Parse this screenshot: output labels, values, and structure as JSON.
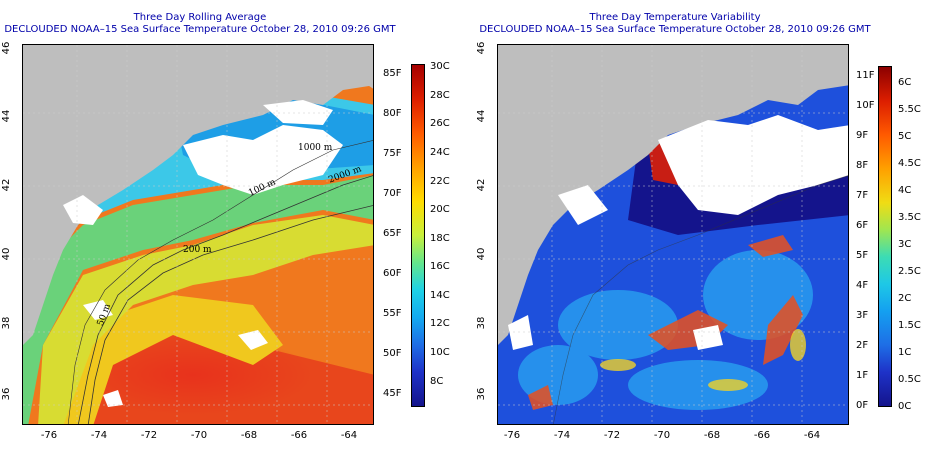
{
  "left_panel": {
    "title_line1": "Three Day Rolling Average",
    "title_line2": "DECLOUDED NOAA–15 Sea Surface Temperature October 28, 2010 09:26 GMT",
    "contour_labels": [
      "1000 m",
      "200 m",
      "50 m",
      "2000 m",
      "100 m"
    ],
    "colorbar": {
      "range_c": [
        6,
        30
      ],
      "range_f": [
        42,
        86
      ],
      "celsius_ticks": [
        "30C",
        "28C",
        "26C",
        "24C",
        "22C",
        "20C",
        "18C",
        "16C",
        "14C",
        "12C",
        "10C",
        "8C"
      ],
      "fahrenheit_ticks": [
        "85F",
        "80F",
        "75F",
        "70F",
        "65F",
        "60F",
        "55F",
        "50F",
        "45F"
      ]
    }
  },
  "right_panel": {
    "title_line1": "Three Day Temperature Variability",
    "title_line2": "DECLOUDED NOAA–15 Sea Surface Temperature October 28, 2010 09:26 GMT",
    "colorbar": {
      "range_c": [
        0,
        6.4
      ],
      "celsius_ticks": [
        "6C",
        "5.5C",
        "5C",
        "4.5C",
        "4C",
        "3.5C",
        "3C",
        "2.5C",
        "2C",
        "1.5C",
        "1C",
        "0.5C",
        "0C"
      ],
      "fahrenheit_ticks": [
        "11F",
        "10F",
        "9F",
        "8F",
        "7F",
        "6F",
        "5F",
        "4F",
        "3F",
        "2F",
        "1F",
        "0F"
      ]
    }
  },
  "axes": {
    "lon_ticks": [
      "-76",
      "-74",
      "-72",
      "-70",
      "-68",
      "-66",
      "-64"
    ],
    "lat_ticks": [
      "46",
      "44",
      "42",
      "40",
      "38",
      "36"
    ]
  },
  "colors": {
    "title": "#0000aa",
    "land": "#bebebe",
    "cloud": "#ffffff"
  }
}
